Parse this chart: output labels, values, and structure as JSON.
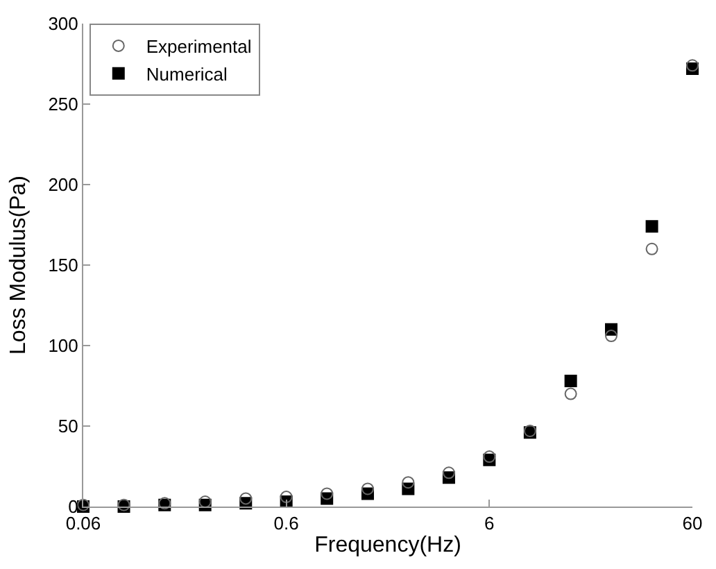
{
  "chart_data": {
    "type": "scatter",
    "xlabel": "Frequency(Hz)",
    "ylabel": "Loss Modulus(Pa)",
    "x": [
      0.06,
      0.0951,
      0.151,
      0.239,
      0.379,
      0.6,
      0.951,
      1.51,
      2.39,
      3.79,
      6,
      9.51,
      15.1,
      23.9,
      37.9,
      60
    ],
    "series": [
      {
        "name": "Experimental",
        "color": "#666666",
        "marker": "circle",
        "values": [
          1,
          1,
          2,
          3,
          5,
          6,
          8,
          11,
          15,
          21,
          31,
          47,
          70,
          106,
          160,
          274
        ]
      },
      {
        "name": "Numerical",
        "color": "#000000",
        "marker": "square",
        "values": [
          0,
          0,
          1,
          1,
          2,
          3,
          5,
          8,
          11,
          18,
          29,
          46,
          78,
          110,
          174,
          272
        ]
      }
    ],
    "log": "x",
    "xlim": [
      0.06,
      60
    ],
    "xticks": [
      0.06,
      0.6,
      6,
      60
    ],
    "ylim": [
      0,
      300
    ],
    "yticks": [
      0,
      50,
      100,
      150,
      200,
      250,
      300
    ],
    "grid": false,
    "legend": "top left"
  }
}
